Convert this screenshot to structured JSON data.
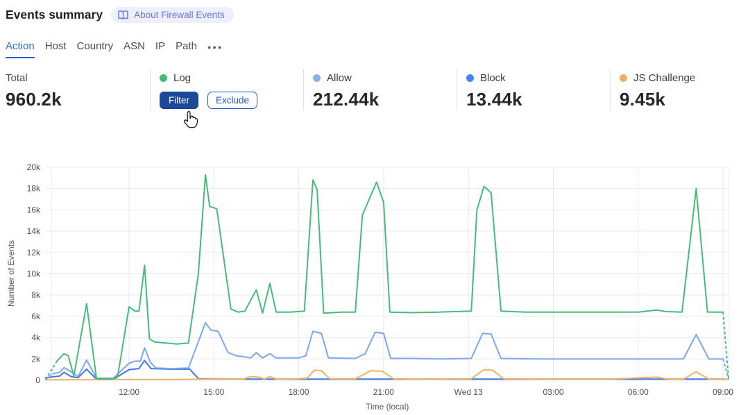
{
  "header": {
    "title": "Events summary",
    "badge": "About Firewall Events"
  },
  "tabs": {
    "items": [
      {
        "label": "Action",
        "active": true
      },
      {
        "label": "Host",
        "active": false
      },
      {
        "label": "Country",
        "active": false
      },
      {
        "label": "ASN",
        "active": false
      },
      {
        "label": "IP",
        "active": false
      },
      {
        "label": "Path",
        "active": false
      }
    ],
    "more_label": "●●●"
  },
  "stats": {
    "total": {
      "label": "Total",
      "value": "960.2k"
    },
    "cards": [
      {
        "label": "Log",
        "color": "#3dbd78",
        "filter_label": "Filter",
        "exclude_label": "Exclude"
      },
      {
        "label": "Allow",
        "color": "#8ab2f2",
        "value": "212.44k"
      },
      {
        "label": "Block",
        "color": "#4286f5",
        "value": "13.44k"
      },
      {
        "label": "JS Challenge",
        "color": "#edb25f",
        "value": "9.45k"
      }
    ]
  },
  "chart_data": {
    "type": "line",
    "title": "",
    "xlabel": "Time (local)",
    "ylabel": "Number of Events",
    "ylim": [
      0,
      20000
    ],
    "grid": true,
    "legend_position": "none",
    "x_axis_note": "t = hours after ~09:00 Tue; Wed 13 marks midnight local",
    "x_ticks": [
      {
        "t": 3,
        "label": "12:00"
      },
      {
        "t": 6,
        "label": "15:00"
      },
      {
        "t": 9,
        "label": "18:00"
      },
      {
        "t": 12,
        "label": "21:00"
      },
      {
        "t": 15,
        "label": "Wed 13"
      },
      {
        "t": 18,
        "label": "03:00"
      },
      {
        "t": 21,
        "label": "06:00"
      },
      {
        "t": 24,
        "label": "09:00"
      }
    ],
    "x_bounds": [
      0.25,
      24.21
    ],
    "y_ticks": [
      {
        "v": 0,
        "label": "0"
      },
      {
        "v": 2,
        "label": "2k"
      },
      {
        "v": 4,
        "label": "4k"
      },
      {
        "v": 6,
        "label": "6k"
      },
      {
        "v": 8,
        "label": "8k"
      },
      {
        "v": 10,
        "label": "10k"
      },
      {
        "v": 12,
        "label": "12k"
      },
      {
        "v": 14,
        "label": "14k"
      },
      {
        "v": 16,
        "label": "16k"
      },
      {
        "v": 18,
        "label": "18k"
      },
      {
        "v": 20,
        "label": "20k"
      }
    ],
    "value_unit": "thousands of events",
    "series": [
      {
        "name": "Block",
        "color": "#3e78e0",
        "points": [
          [
            0.05,
            0.25
          ],
          [
            0.55,
            0.4
          ],
          [
            0.7,
            0.75
          ],
          [
            0.95,
            0.35
          ],
          [
            1.2,
            0.25
          ],
          [
            1.5,
            1.05
          ],
          [
            1.85,
            0.1
          ],
          [
            2.45,
            0.1
          ],
          [
            3.0,
            1.0
          ],
          [
            3.35,
            1.1
          ],
          [
            3.55,
            1.85
          ],
          [
            3.78,
            1.1
          ],
          [
            4.5,
            1.05
          ],
          [
            5.15,
            1.05
          ],
          [
            5.45,
            0.15
          ],
          [
            6.5,
            0.12
          ],
          [
            8.0,
            0.12
          ],
          [
            10.0,
            0.12
          ],
          [
            12.0,
            0.12
          ],
          [
            14.0,
            0.12
          ],
          [
            16.0,
            0.12
          ],
          [
            18.0,
            0.12
          ],
          [
            20.0,
            0.12
          ],
          [
            22.0,
            0.12
          ],
          [
            24.1,
            0.12
          ]
        ]
      },
      {
        "name": "JS Challenge",
        "color": "#f0b264",
        "points": [
          [
            0.05,
            0.05
          ],
          [
            1.5,
            0.06
          ],
          [
            3.0,
            0.08
          ],
          [
            4.5,
            0.08
          ],
          [
            6.0,
            0.12
          ],
          [
            7.05,
            0.12
          ],
          [
            7.3,
            0.35
          ],
          [
            7.6,
            0.3
          ],
          [
            7.78,
            0.12
          ],
          [
            7.98,
            0.35
          ],
          [
            8.2,
            0.12
          ],
          [
            9.0,
            0.15
          ],
          [
            9.3,
            0.2
          ],
          [
            9.55,
            0.95
          ],
          [
            9.8,
            0.9
          ],
          [
            10.1,
            0.15
          ],
          [
            11.0,
            0.15
          ],
          [
            11.55,
            0.9
          ],
          [
            11.95,
            0.85
          ],
          [
            12.35,
            0.15
          ],
          [
            13.5,
            0.12
          ],
          [
            15.1,
            0.15
          ],
          [
            15.55,
            1.0
          ],
          [
            15.85,
            0.95
          ],
          [
            16.25,
            0.15
          ],
          [
            17.5,
            0.12
          ],
          [
            20.0,
            0.12
          ],
          [
            21.65,
            0.3
          ],
          [
            22.0,
            0.15
          ],
          [
            22.6,
            0.12
          ],
          [
            23.05,
            0.8
          ],
          [
            23.5,
            0.12
          ],
          [
            24.15,
            0.1
          ]
        ]
      },
      {
        "name": "Allow",
        "color": "#7aa7ef",
        "dash_pre": [
          [
            0.05,
            0.1
          ],
          [
            0.3,
            0.6
          ]
        ],
        "points": [
          [
            0.3,
            0.6
          ],
          [
            0.55,
            0.75
          ],
          [
            0.7,
            1.2
          ],
          [
            0.9,
            0.9
          ],
          [
            1.2,
            0.35
          ],
          [
            1.5,
            1.9
          ],
          [
            1.85,
            0.2
          ],
          [
            2.45,
            0.2
          ],
          [
            3.0,
            1.6
          ],
          [
            3.2,
            1.8
          ],
          [
            3.4,
            1.8
          ],
          [
            3.55,
            3.05
          ],
          [
            3.75,
            1.7
          ],
          [
            3.95,
            1.15
          ],
          [
            4.5,
            1.1
          ],
          [
            5.1,
            1.15
          ],
          [
            5.7,
            5.4
          ],
          [
            5.9,
            4.7
          ],
          [
            6.15,
            4.6
          ],
          [
            6.5,
            2.6
          ],
          [
            6.8,
            2.3
          ],
          [
            7.1,
            2.2
          ],
          [
            7.3,
            2.1
          ],
          [
            7.5,
            2.6
          ],
          [
            7.72,
            2.1
          ],
          [
            7.98,
            2.5
          ],
          [
            8.2,
            2.1
          ],
          [
            9.0,
            2.1
          ],
          [
            9.25,
            2.3
          ],
          [
            9.5,
            4.6
          ],
          [
            9.8,
            4.4
          ],
          [
            10.05,
            2.1
          ],
          [
            11.0,
            2.05
          ],
          [
            11.35,
            2.5
          ],
          [
            11.7,
            4.5
          ],
          [
            12.0,
            4.4
          ],
          [
            12.25,
            2.05
          ],
          [
            13.0,
            2.05
          ],
          [
            14.0,
            2.0
          ],
          [
            15.1,
            2.05
          ],
          [
            15.5,
            4.4
          ],
          [
            15.8,
            4.35
          ],
          [
            16.15,
            2.05
          ],
          [
            17.5,
            2.0
          ],
          [
            19.0,
            2.0
          ],
          [
            20.5,
            2.0
          ],
          [
            22.0,
            2.0
          ],
          [
            22.6,
            2.0
          ],
          [
            23.05,
            4.3
          ],
          [
            23.5,
            2.0
          ],
          [
            24.0,
            2.0
          ]
        ],
        "dash_post": [
          [
            24.0,
            2.0
          ],
          [
            24.2,
            0.05
          ]
        ]
      },
      {
        "name": "Log",
        "color": "#41bd79",
        "dash_pre": [
          [
            0.05,
            0.05
          ],
          [
            0.45,
            1.8
          ]
        ],
        "points": [
          [
            0.45,
            1.8
          ],
          [
            0.7,
            2.5
          ],
          [
            0.85,
            2.3
          ],
          [
            1.05,
            0.4
          ],
          [
            1.5,
            7.2
          ],
          [
            1.85,
            0.15
          ],
          [
            2.4,
            0.1
          ],
          [
            2.6,
            0.4
          ],
          [
            3.0,
            6.9
          ],
          [
            3.2,
            6.5
          ],
          [
            3.35,
            6.5
          ],
          [
            3.55,
            10.8
          ],
          [
            3.72,
            3.9
          ],
          [
            3.9,
            3.6
          ],
          [
            4.3,
            3.5
          ],
          [
            4.7,
            3.4
          ],
          [
            5.1,
            3.5
          ],
          [
            5.45,
            10.0
          ],
          [
            5.7,
            19.3
          ],
          [
            5.85,
            16.3
          ],
          [
            6.1,
            16.1
          ],
          [
            6.6,
            6.7
          ],
          [
            6.85,
            6.4
          ],
          [
            7.1,
            6.5
          ],
          [
            7.5,
            8.5
          ],
          [
            7.72,
            6.3
          ],
          [
            7.98,
            9.1
          ],
          [
            8.2,
            6.4
          ],
          [
            8.7,
            6.4
          ],
          [
            9.2,
            6.5
          ],
          [
            9.5,
            18.8
          ],
          [
            9.65,
            17.9
          ],
          [
            9.88,
            6.3
          ],
          [
            10.5,
            6.4
          ],
          [
            11.0,
            6.4
          ],
          [
            11.25,
            15.5
          ],
          [
            11.75,
            18.6
          ],
          [
            12.0,
            16.7
          ],
          [
            12.22,
            6.4
          ],
          [
            13.0,
            6.35
          ],
          [
            14.0,
            6.4
          ],
          [
            15.1,
            6.5
          ],
          [
            15.3,
            16.0
          ],
          [
            15.55,
            18.2
          ],
          [
            15.8,
            17.6
          ],
          [
            16.15,
            6.5
          ],
          [
            17.0,
            6.4
          ],
          [
            18.0,
            6.4
          ],
          [
            19.0,
            6.4
          ],
          [
            20.0,
            6.4
          ],
          [
            21.0,
            6.4
          ],
          [
            21.65,
            6.6
          ],
          [
            22.0,
            6.45
          ],
          [
            22.55,
            6.4
          ],
          [
            23.05,
            18.0
          ],
          [
            23.45,
            6.4
          ],
          [
            24.0,
            6.4
          ]
        ],
        "dash_post": [
          [
            24.0,
            6.4
          ],
          [
            24.2,
            0.05
          ]
        ]
      }
    ]
  }
}
